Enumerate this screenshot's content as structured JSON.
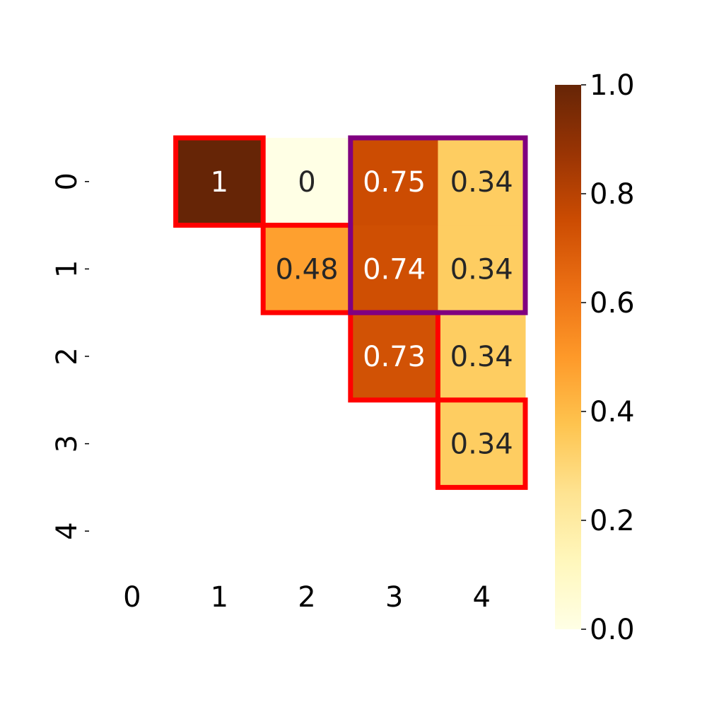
{
  "chart_data": {
    "type": "heatmap",
    "title": "",
    "xlabel": "",
    "ylabel": "",
    "x_ticks": [
      "0",
      "1",
      "2",
      "3",
      "4"
    ],
    "y_ticks": [
      "0",
      "1",
      "2",
      "3",
      "4"
    ],
    "cells": [
      {
        "row": 0,
        "col": 1,
        "value": 1,
        "label": "1"
      },
      {
        "row": 0,
        "col": 2,
        "value": 0,
        "label": "0"
      },
      {
        "row": 0,
        "col": 3,
        "value": 0.75,
        "label": "0.75"
      },
      {
        "row": 0,
        "col": 4,
        "value": 0.34,
        "label": "0.34"
      },
      {
        "row": 1,
        "col": 2,
        "value": 0.48,
        "label": "0.48"
      },
      {
        "row": 1,
        "col": 3,
        "value": 0.74,
        "label": "0.74"
      },
      {
        "row": 1,
        "col": 4,
        "value": 0.34,
        "label": "0.34"
      },
      {
        "row": 2,
        "col": 3,
        "value": 0.73,
        "label": "0.73"
      },
      {
        "row": 2,
        "col": 4,
        "value": 0.34,
        "label": "0.34"
      },
      {
        "row": 3,
        "col": 4,
        "value": 0.34,
        "label": "0.34"
      }
    ],
    "colorbar": {
      "range": [
        0.0,
        1.0
      ],
      "ticks": [
        "0.0",
        "0.2",
        "0.4",
        "0.6",
        "0.8",
        "1.0"
      ],
      "colormap": "YlOrBr"
    },
    "highlights": [
      {
        "color": "#ff0000",
        "rows": [
          0,
          0
        ],
        "cols": [
          1,
          1
        ]
      },
      {
        "color": "#ff0000",
        "rows": [
          1,
          1
        ],
        "cols": [
          2,
          2
        ]
      },
      {
        "color": "#ff0000",
        "rows": [
          2,
          2
        ],
        "cols": [
          3,
          3
        ]
      },
      {
        "color": "#ff0000",
        "rows": [
          3,
          3
        ],
        "cols": [
          4,
          4
        ]
      },
      {
        "color": "#800080",
        "rows": [
          0,
          1
        ],
        "cols": [
          3,
          4
        ]
      }
    ],
    "colors": {
      "text_dark": "#262626",
      "text_light": "#ffffff"
    }
  }
}
